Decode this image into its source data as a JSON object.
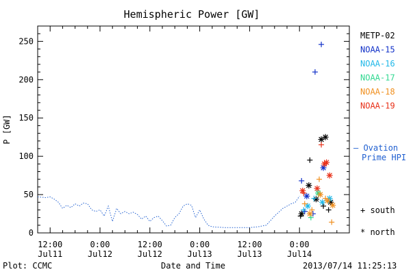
{
  "chart_data": {
    "type": "scatter",
    "title": "Hemispheric Power [GW]",
    "ylabel": "P [GW]",
    "xlabel": "Date and Time",
    "ylim": [
      0,
      270
    ],
    "yticks": [
      0,
      50,
      100,
      150,
      200,
      250
    ],
    "xlim": [
      "2013-07-11T09:00",
      "2013-07-14T12:00"
    ],
    "xticks": [
      {
        "time": "2013-07-11T12:00",
        "line1": "12:00",
        "line2": "Jul11"
      },
      {
        "time": "2013-07-12T00:00",
        "line1": "0:00",
        "line2": "Jul12"
      },
      {
        "time": "2013-07-12T12:00",
        "line1": "12:00",
        "line2": "Jul12"
      },
      {
        "time": "2013-07-13T00:00",
        "line1": "0:00",
        "line2": "Jul13"
      },
      {
        "time": "2013-07-13T12:00",
        "line1": "12:00",
        "line2": "Jul13"
      },
      {
        "time": "2013-07-14T00:00",
        "line1": "0:00",
        "line2": "Jul14"
      }
    ],
    "ovation": {
      "name": "Ovation Prime HPI",
      "name_line1": "— Ovation",
      "name_line2": "Prime HPI",
      "color": "#1f5fd0",
      "points": [
        [
          "2013-07-11T09:00",
          47
        ],
        [
          "2013-07-11T11:00",
          46
        ],
        [
          "2013-07-11T12:00",
          47
        ],
        [
          "2013-07-11T13:00",
          44
        ],
        [
          "2013-07-11T14:00",
          40
        ],
        [
          "2013-07-11T15:00",
          32
        ],
        [
          "2013-07-11T16:00",
          36
        ],
        [
          "2013-07-11T17:00",
          33
        ],
        [
          "2013-07-11T18:00",
          38
        ],
        [
          "2013-07-11T19:00",
          35
        ],
        [
          "2013-07-11T20:00",
          39
        ],
        [
          "2013-07-11T21:00",
          38
        ],
        [
          "2013-07-11T22:00",
          30
        ],
        [
          "2013-07-11T23:00",
          28
        ],
        [
          "2013-07-12T00:00",
          30
        ],
        [
          "2013-07-12T01:00",
          22
        ],
        [
          "2013-07-12T02:00",
          35
        ],
        [
          "2013-07-12T03:00",
          15
        ],
        [
          "2013-07-12T04:00",
          32
        ],
        [
          "2013-07-12T05:00",
          25
        ],
        [
          "2013-07-12T06:00",
          28
        ],
        [
          "2013-07-12T07:00",
          25
        ],
        [
          "2013-07-12T08:00",
          27
        ],
        [
          "2013-07-12T09:00",
          24
        ],
        [
          "2013-07-12T10:00",
          18
        ],
        [
          "2013-07-12T11:00",
          22
        ],
        [
          "2013-07-12T12:00",
          15
        ],
        [
          "2013-07-12T13:00",
          20
        ],
        [
          "2013-07-12T14:00",
          22
        ],
        [
          "2013-07-12T15:00",
          16
        ],
        [
          "2013-07-12T16:00",
          9
        ],
        [
          "2013-07-12T17:00",
          10
        ],
        [
          "2013-07-12T18:00",
          20
        ],
        [
          "2013-07-12T19:00",
          25
        ],
        [
          "2013-07-12T20:00",
          35
        ],
        [
          "2013-07-12T21:00",
          38
        ],
        [
          "2013-07-12T22:00",
          36
        ],
        [
          "2013-07-12T23:00",
          20
        ],
        [
          "2013-07-13T00:00",
          30
        ],
        [
          "2013-07-13T01:00",
          18
        ],
        [
          "2013-07-13T02:00",
          10
        ],
        [
          "2013-07-13T03:00",
          8
        ],
        [
          "2013-07-13T06:00",
          7
        ],
        [
          "2013-07-13T09:00",
          7
        ],
        [
          "2013-07-13T12:00",
          7
        ],
        [
          "2013-07-13T14:00",
          8
        ],
        [
          "2013-07-13T16:00",
          10
        ],
        [
          "2013-07-13T18:00",
          22
        ],
        [
          "2013-07-13T20:00",
          32
        ],
        [
          "2013-07-13T21:00",
          35
        ],
        [
          "2013-07-13T22:00",
          38
        ],
        [
          "2013-07-13T23:00",
          40
        ],
        [
          "2013-07-14T00:00",
          48
        ]
      ]
    },
    "satellites": [
      {
        "name": "METP-02",
        "color": "#000000",
        "south": [
          [
            "2013-07-14T00:15",
            22
          ],
          [
            "2013-07-14T02:30",
            95
          ],
          [
            "2013-07-14T05:45",
            35
          ],
          [
            "2013-07-14T07:00",
            30
          ]
        ],
        "north": [
          [
            "2013-07-14T00:30",
            25
          ],
          [
            "2013-07-14T02:15",
            62
          ],
          [
            "2013-07-14T05:15",
            122
          ],
          [
            "2013-07-14T06:15",
            125
          ],
          [
            "2013-07-14T07:30",
            40
          ],
          [
            "2013-07-14T04:00",
            44
          ]
        ]
      },
      {
        "name": "NOAA-15",
        "color": "#1030c8",
        "south": [
          [
            "2013-07-14T00:30",
            68
          ],
          [
            "2013-07-14T01:15",
            28
          ],
          [
            "2013-07-14T03:45",
            210
          ],
          [
            "2013-07-14T05:15",
            246
          ],
          [
            "2013-07-14T03:15",
            25
          ]
        ],
        "north": [
          [
            "2013-07-14T01:45",
            48
          ],
          [
            "2013-07-14T05:45",
            85
          ]
        ]
      },
      {
        "name": "NOAA-16",
        "color": "#20b8e8",
        "south": [
          [
            "2013-07-14T01:00",
            30
          ],
          [
            "2013-07-14T03:30",
            45
          ],
          [
            "2013-07-14T07:00",
            42
          ]
        ],
        "north": [
          [
            "2013-07-14T02:00",
            35
          ],
          [
            "2013-07-14T05:30",
            40
          ],
          [
            "2013-07-14T07:15",
            45
          ]
        ]
      },
      {
        "name": "NOAA-17",
        "color": "#30d890",
        "south": [
          [
            "2013-07-14T02:45",
            20
          ]
        ],
        "north": [
          [
            "2013-07-14T04:30",
            52
          ]
        ]
      },
      {
        "name": "NOAA-18",
        "color": "#f09020",
        "south": [
          [
            "2013-07-14T01:15",
            38
          ],
          [
            "2013-07-14T03:00",
            30
          ],
          [
            "2013-07-14T04:45",
            70
          ],
          [
            "2013-07-14T06:15",
            45
          ],
          [
            "2013-07-14T07:45",
            14
          ]
        ],
        "north": [
          [
            "2013-07-14T02:30",
            25
          ],
          [
            "2013-07-14T05:00",
            50
          ],
          [
            "2013-07-14T08:00",
            36
          ],
          [
            "2013-07-14T06:45",
            42
          ]
        ]
      },
      {
        "name": "NOAA-19",
        "color": "#e83018",
        "south": [
          [
            "2013-07-14T01:00",
            52
          ],
          [
            "2013-07-14T05:15",
            115
          ]
        ],
        "north": [
          [
            "2013-07-14T00:45",
            55
          ],
          [
            "2013-07-14T04:15",
            58
          ],
          [
            "2013-07-14T06:00",
            90
          ],
          [
            "2013-07-14T06:30",
            92
          ],
          [
            "2013-07-14T07:15",
            75
          ]
        ]
      }
    ],
    "markers_legend": {
      "south": "+ south",
      "north": "* north"
    }
  },
  "footer": {
    "left": "Plot: CCMC",
    "right": "2013/07/14 11:25:13"
  }
}
